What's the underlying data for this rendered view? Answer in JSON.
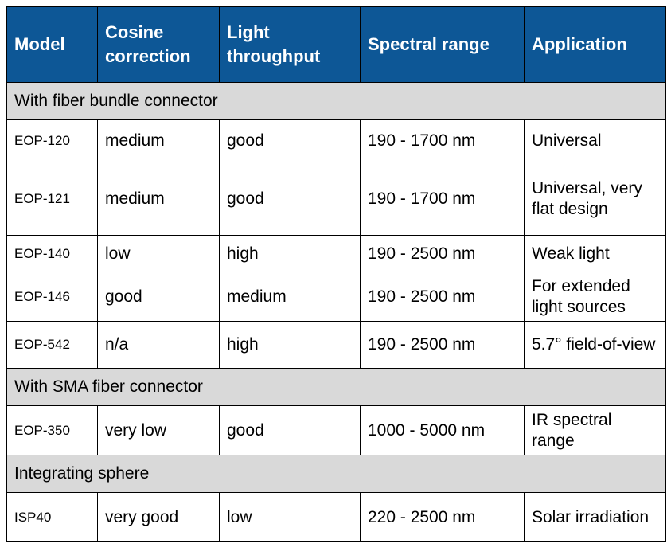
{
  "headers": [
    "Model",
    "Cosine correction",
    "Light throughput",
    "Spectral range",
    "Application"
  ],
  "sections": [
    {
      "title": "With fiber bundle connector",
      "rows": [
        [
          "EOP-120",
          "medium",
          "good",
          "190 - 1700 nm",
          "Universal"
        ],
        [
          "EOP-121",
          "medium",
          "good",
          "190 - 1700 nm",
          "Universal, very flat design"
        ],
        [
          "EOP-140",
          "low",
          "high",
          "190 - 2500 nm",
          "Weak light"
        ],
        [
          "EOP-146",
          "good",
          "medium",
          "190 - 2500 nm",
          "For extended light sources"
        ],
        [
          "EOP-542",
          "n/a",
          "high",
          "190 - 2500 nm",
          "5.7° field-of-view"
        ]
      ]
    },
    {
      "title": "With SMA fiber connector",
      "rows": [
        [
          "EOP-350",
          "very low",
          "good",
          "1000 - 5000 nm",
          "IR spectral range"
        ]
      ]
    },
    {
      "title": "Integrating sphere",
      "rows": [
        [
          "ISP40",
          "very good",
          "low",
          "220 - 2500 nm",
          "Solar irradiation"
        ]
      ]
    }
  ],
  "colors": {
    "header_bg": "#0d5796",
    "header_text": "#ffffff",
    "section_bg": "#d9d9d9"
  }
}
